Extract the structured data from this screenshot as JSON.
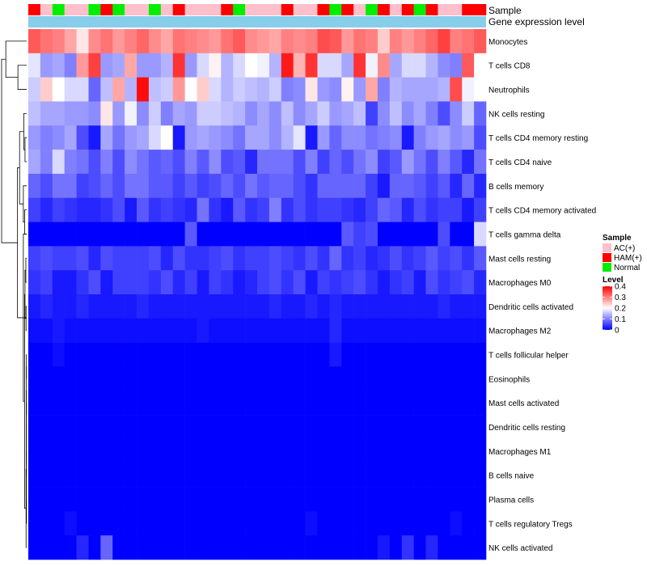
{
  "chart_data": {
    "type": "heatmap",
    "annotation_labels": {
      "sample": "Sample",
      "gene_expression": "Gene expression level"
    },
    "sample_groups": [
      "HAM(+)",
      "AC(+)",
      "Normal",
      "AC(+)",
      "AC(+)",
      "Normal",
      "HAM(+)",
      "Normal",
      "AC(+)",
      "AC(+)",
      "Normal",
      "AC(+)",
      "HAM(+)",
      "AC(+)",
      "AC(+)",
      "AC(+)",
      "HAM(+)",
      "Normal",
      "AC(+)",
      "AC(+)",
      "AC(+)",
      "HAM(+)",
      "AC(+)",
      "AC(+)",
      "HAM(+)",
      "Normal",
      "HAM(+)",
      "AC(+)",
      "Normal",
      "HAM(+)",
      "AC(+)",
      "HAM(+)",
      "Normal",
      "HAM(+)",
      "AC(+)",
      "AC(+)",
      "HAM(+)",
      "HAM(+)"
    ],
    "rows": [
      {
        "name": "Monocytes",
        "values": [
          0.33,
          0.31,
          0.3,
          0.27,
          0.22,
          0.29,
          0.31,
          0.28,
          0.3,
          0.32,
          0.29,
          0.27,
          0.31,
          0.3,
          0.29,
          0.28,
          0.31,
          0.33,
          0.29,
          0.28,
          0.27,
          0.3,
          0.29,
          0.3,
          0.34,
          0.33,
          0.28,
          0.31,
          0.3,
          0.24,
          0.3,
          0.28,
          0.3,
          0.32,
          0.35,
          0.3,
          0.31,
          0.33
        ]
      },
      {
        "name": "T cells CD8",
        "values": [
          0.18,
          0.12,
          0.13,
          0.1,
          0.28,
          0.35,
          0.12,
          0.13,
          0.27,
          0.12,
          0.12,
          0.14,
          0.36,
          0.12,
          0.17,
          0.21,
          0.14,
          0.17,
          0.2,
          0.19,
          0.14,
          0.38,
          0.26,
          0.36,
          0.17,
          0.17,
          0.13,
          0.36,
          0.19,
          0.29,
          0.13,
          0.17,
          0.17,
          0.14,
          0.11,
          0.1,
          0.33,
          0.2
        ]
      },
      {
        "name": "Neutrophils",
        "values": [
          0.16,
          0.24,
          0.2,
          0.17,
          0.17,
          0.08,
          0.15,
          0.27,
          0.14,
          0.39,
          0.15,
          0.16,
          0.28,
          0.2,
          0.24,
          0.17,
          0.14,
          0.16,
          0.15,
          0.14,
          0.16,
          0.1,
          0.11,
          0.22,
          0.12,
          0.11,
          0.21,
          0.12,
          0.27,
          0.1,
          0.14,
          0.13,
          0.13,
          0.13,
          0.14,
          0.34,
          0.19,
          0.2
        ]
      },
      {
        "name": "NK cells resting",
        "values": [
          0.15,
          0.13,
          0.13,
          0.12,
          0.12,
          0.11,
          0.22,
          0.12,
          0.19,
          0.11,
          0.16,
          0.1,
          0.13,
          0.12,
          0.16,
          0.16,
          0.15,
          0.14,
          0.11,
          0.13,
          0.11,
          0.15,
          0.11,
          0.13,
          0.16,
          0.12,
          0.13,
          0.15,
          0.05,
          0.11,
          0.15,
          0.11,
          0.13,
          0.1,
          0.06,
          0.11,
          0.16,
          0.08
        ]
      },
      {
        "name": "T cells CD4 memory resting",
        "values": [
          0.12,
          0.1,
          0.11,
          0.13,
          0.06,
          0.02,
          0.13,
          0.09,
          0.12,
          0.13,
          0.17,
          0.2,
          0.02,
          0.12,
          0.13,
          0.12,
          0.11,
          0.09,
          0.13,
          0.13,
          0.11,
          0.14,
          0.18,
          0.02,
          0.12,
          0.08,
          0.11,
          0.11,
          0.09,
          0.1,
          0.11,
          0.02,
          0.1,
          0.12,
          0.13,
          0.11,
          0.12,
          0.06
        ]
      },
      {
        "name": "T cells CD4 naive",
        "values": [
          0.13,
          0.1,
          0.17,
          0.1,
          0.09,
          0.06,
          0.1,
          0.06,
          0.11,
          0.09,
          0.07,
          0.08,
          0.06,
          0.1,
          0.07,
          0.11,
          0.06,
          0.07,
          0.03,
          0.09,
          0.09,
          0.09,
          0.06,
          0.1,
          0.05,
          0.08,
          0.06,
          0.09,
          0.11,
          0.05,
          0.07,
          0.12,
          0.09,
          0.06,
          0.1,
          0.07,
          0.03,
          0.09
        ]
      },
      {
        "name": "B cells memory",
        "values": [
          0.08,
          0.06,
          0.09,
          0.09,
          0.05,
          0.06,
          0.08,
          0.06,
          0.09,
          0.09,
          0.07,
          0.07,
          0.05,
          0.07,
          0.05,
          0.06,
          0.08,
          0.06,
          0.09,
          0.07,
          0.08,
          0.08,
          0.06,
          0.04,
          0.08,
          0.08,
          0.08,
          0.08,
          0.05,
          0.02,
          0.08,
          0.08,
          0.07,
          0.05,
          0.07,
          0.03,
          0.08,
          0.03
        ]
      },
      {
        "name": "T cells CD4 memory activated",
        "values": [
          0.05,
          0.03,
          0.05,
          0.04,
          0.03,
          0.03,
          0.04,
          0.06,
          0.02,
          0.07,
          0.04,
          0.05,
          0.04,
          0.03,
          0.09,
          0.04,
          0.02,
          0.07,
          0.04,
          0.05,
          0.1,
          0.04,
          0.06,
          0.04,
          0.05,
          0.05,
          0.04,
          0.03,
          0.05,
          0.08,
          0.07,
          0.03,
          0.06,
          0.04,
          0.05,
          0.05,
          0.02,
          0.05
        ]
      },
      {
        "name": "T cells gamma delta",
        "values": [
          0.0,
          0.0,
          0.0,
          0.0,
          0.0,
          0.0,
          0.0,
          0.0,
          0.0,
          0.0,
          0.0,
          0.0,
          0.0,
          0.07,
          0.0,
          0.0,
          0.0,
          0.0,
          0.0,
          0.0,
          0.0,
          0.0,
          0.0,
          0.0,
          0.0,
          0.0,
          0.07,
          0.05,
          0.06,
          0.0,
          0.0,
          0.0,
          0.0,
          0.0,
          0.06,
          0.0,
          0.0,
          0.17
        ]
      },
      {
        "name": "Mast cells resting",
        "values": [
          0.05,
          0.06,
          0.05,
          0.05,
          0.06,
          0.03,
          0.06,
          0.05,
          0.05,
          0.05,
          0.06,
          0.03,
          0.06,
          0.04,
          0.04,
          0.05,
          0.06,
          0.04,
          0.05,
          0.05,
          0.06,
          0.05,
          0.04,
          0.06,
          0.04,
          0.08,
          0.04,
          0.05,
          0.03,
          0.04,
          0.06,
          0.04,
          0.05,
          0.07,
          0.05,
          0.06,
          0.04,
          0.07
        ]
      },
      {
        "name": "Macrophages M0",
        "values": [
          0.04,
          0.05,
          0.02,
          0.02,
          0.04,
          0.06,
          0.02,
          0.05,
          0.05,
          0.05,
          0.04,
          0.06,
          0.03,
          0.05,
          0.02,
          0.05,
          0.04,
          0.02,
          0.03,
          0.05,
          0.06,
          0.04,
          0.06,
          0.02,
          0.05,
          0.04,
          0.05,
          0.06,
          0.04,
          0.02,
          0.04,
          0.05,
          0.02,
          0.06,
          0.04,
          0.05,
          0.06,
          0.03
        ]
      },
      {
        "name": "Dendritic cells activated",
        "values": [
          0.02,
          0.03,
          0.02,
          0.02,
          0.03,
          0.02,
          0.02,
          0.02,
          0.02,
          0.03,
          0.02,
          0.02,
          0.02,
          0.02,
          0.02,
          0.02,
          0.02,
          0.02,
          0.02,
          0.02,
          0.03,
          0.02,
          0.02,
          0.03,
          0.02,
          0.03,
          0.02,
          0.02,
          0.02,
          0.02,
          0.02,
          0.02,
          0.02,
          0.02,
          0.03,
          0.02,
          0.02,
          0.02
        ]
      },
      {
        "name": "Macrophages M2",
        "values": [
          0.01,
          0.01,
          0.02,
          0.01,
          0.01,
          0.01,
          0.01,
          0.01,
          0.01,
          0.01,
          0.01,
          0.01,
          0.01,
          0.01,
          0.02,
          0.01,
          0.01,
          0.01,
          0.01,
          0.01,
          0.01,
          0.01,
          0.01,
          0.01,
          0.01,
          0.03,
          0.01,
          0.01,
          0.01,
          0.01,
          0.01,
          0.01,
          0.01,
          0.01,
          0.01,
          0.01,
          0.01,
          0.01
        ]
      },
      {
        "name": "T cells follicular helper",
        "values": [
          0.0,
          0.0,
          0.01,
          0.0,
          0.0,
          0.0,
          0.0,
          0.0,
          0.0,
          0.0,
          0.0,
          0.0,
          0.0,
          0.0,
          0.0,
          0.0,
          0.0,
          0.0,
          0.0,
          0.0,
          0.0,
          0.0,
          0.0,
          0.0,
          0.0,
          0.02,
          0.0,
          0.0,
          0.0,
          0.0,
          0.0,
          0.0,
          0.0,
          0.0,
          0.0,
          0.0,
          0.0,
          0.0
        ]
      },
      {
        "name": "Eosinophils",
        "values": [
          0.0,
          0.0,
          0.0,
          0.0,
          0.0,
          0.0,
          0.0,
          0.0,
          0.0,
          0.0,
          0.0,
          0.0,
          0.0,
          0.0,
          0.0,
          0.0,
          0.0,
          0.0,
          0.0,
          0.0,
          0.0,
          0.0,
          0.0,
          0.0,
          0.0,
          0.0,
          0.0,
          0.0,
          0.0,
          0.0,
          0.0,
          0.0,
          0.0,
          0.0,
          0.0,
          0.0,
          0.0,
          0.0
        ]
      },
      {
        "name": "Mast cells activated",
        "values": [
          0.0,
          0.0,
          0.0,
          0.0,
          0.0,
          0.0,
          0.0,
          0.0,
          0.0,
          0.0,
          0.0,
          0.0,
          0.0,
          0.0,
          0.0,
          0.0,
          0.0,
          0.0,
          0.0,
          0.0,
          0.0,
          0.0,
          0.0,
          0.0,
          0.0,
          0.0,
          0.0,
          0.0,
          0.0,
          0.0,
          0.0,
          0.0,
          0.0,
          0.0,
          0.0,
          0.0,
          0.0,
          0.0
        ]
      },
      {
        "name": "Dendritic cells resting",
        "values": [
          0.0,
          0.0,
          0.0,
          0.0,
          0.0,
          0.0,
          0.0,
          0.0,
          0.0,
          0.0,
          0.0,
          0.0,
          0.0,
          0.0,
          0.0,
          0.0,
          0.0,
          0.0,
          0.0,
          0.0,
          0.0,
          0.0,
          0.0,
          0.0,
          0.0,
          0.0,
          0.0,
          0.0,
          0.0,
          0.0,
          0.0,
          0.0,
          0.0,
          0.0,
          0.0,
          0.0,
          0.0,
          0.0
        ]
      },
      {
        "name": "Macrophages M1",
        "values": [
          0.0,
          0.0,
          0.0,
          0.0,
          0.0,
          0.0,
          0.0,
          0.0,
          0.0,
          0.0,
          0.0,
          0.0,
          0.0,
          0.0,
          0.0,
          0.0,
          0.0,
          0.0,
          0.0,
          0.0,
          0.0,
          0.0,
          0.0,
          0.0,
          0.0,
          0.0,
          0.0,
          0.0,
          0.0,
          0.0,
          0.0,
          0.0,
          0.0,
          0.0,
          0.0,
          0.0,
          0.0,
          0.0
        ]
      },
      {
        "name": "B cells naive",
        "values": [
          0.0,
          0.0,
          0.0,
          0.0,
          0.0,
          0.0,
          0.0,
          0.0,
          0.0,
          0.0,
          0.0,
          0.0,
          0.0,
          0.0,
          0.0,
          0.0,
          0.0,
          0.0,
          0.0,
          0.0,
          0.0,
          0.0,
          0.0,
          0.0,
          0.0,
          0.0,
          0.0,
          0.0,
          0.0,
          0.0,
          0.0,
          0.0,
          0.0,
          0.0,
          0.0,
          0.0,
          0.0,
          0.0
        ]
      },
      {
        "name": "Plasma cells",
        "values": [
          0.0,
          0.0,
          0.0,
          0.0,
          0.0,
          0.0,
          0.0,
          0.0,
          0.0,
          0.0,
          0.0,
          0.0,
          0.0,
          0.0,
          0.0,
          0.0,
          0.0,
          0.0,
          0.0,
          0.0,
          0.0,
          0.0,
          0.0,
          0.0,
          0.0,
          0.0,
          0.0,
          0.0,
          0.0,
          0.0,
          0.0,
          0.0,
          0.0,
          0.0,
          0.0,
          0.0,
          0.0,
          0.0
        ]
      },
      {
        "name": "T cells regulatory  Tregs",
        "values": [
          0.0,
          0.0,
          0.0,
          0.01,
          0.0,
          0.0,
          0.0,
          0.0,
          0.0,
          0.0,
          0.0,
          0.0,
          0.0,
          0.0,
          0.0,
          0.0,
          0.0,
          0.0,
          0.0,
          0.0,
          0.0,
          0.0,
          0.0,
          0.01,
          0.0,
          0.0,
          0.0,
          0.0,
          0.0,
          0.0,
          0.0,
          0.0,
          0.0,
          0.0,
          0.0,
          0.01,
          0.0,
          0.0
        ]
      },
      {
        "name": "NK cells activated",
        "values": [
          0.0,
          0.0,
          0.0,
          0.0,
          0.03,
          0.0,
          0.08,
          0.0,
          0.0,
          0.0,
          0.0,
          0.0,
          0.0,
          0.0,
          0.0,
          0.0,
          0.0,
          0.0,
          0.0,
          0.0,
          0.0,
          0.0,
          0.0,
          0.0,
          0.0,
          0.0,
          0.0,
          0.0,
          0.0,
          0.02,
          0.0,
          0.04,
          0.0,
          0.03,
          0.0,
          0.0,
          0.0,
          0.0
        ]
      }
    ],
    "row_dendrogram": [
      {
        "l": 4,
        "r": 5,
        "h": 0.04
      },
      {
        "l": 7,
        "r": 8,
        "h": 0.05
      },
      {
        "l": 13,
        "r": 14,
        "h": 0.005
      },
      {
        "l": 15,
        "r": 16,
        "h": 0.005
      },
      {
        "l": 17,
        "r": 18,
        "h": 0.005
      },
      {
        "l": 19,
        "r": 20,
        "h": 0.005
      },
      {
        "l": 9,
        "r": 10,
        "h": 0.02
      },
      {
        "l": 11,
        "r": 12,
        "h": 0.015
      },
      {
        "l": 3,
        "r": 4.5,
        "h": 0.07
      },
      {
        "l": 6,
        "r": 7.5,
        "h": 0.08
      },
      {
        "l": 1,
        "r": 2,
        "h": 0.21
      },
      {
        "l": 0,
        "r": 1.5,
        "h": 0.5
      },
      {
        "l": 3.75,
        "r": 6.75,
        "h": 0.17
      },
      {
        "l": 9.5,
        "r": 11.5,
        "h": 0.04
      },
      {
        "l": 13.5,
        "r": 15.5,
        "h": 0.006
      },
      {
        "l": 14.5,
        "r": 17.5,
        "h": 0.007
      },
      {
        "l": 16,
        "r": 19.5,
        "h": 0.008
      },
      {
        "l": 17.75,
        "r": 21,
        "h": 0.015
      },
      {
        "l": 10.5,
        "r": 19.375,
        "h": 0.05
      },
      {
        "l": 8,
        "r": 14.9375,
        "h": 0.08
      },
      {
        "l": 5.25,
        "r": 11.47,
        "h": 0.22
      },
      {
        "l": 0.75,
        "r": 8.36,
        "h": 0.6
      }
    ],
    "legend": {
      "sample_title": "Sample",
      "sample_entries": [
        {
          "label": "AC(+)",
          "color": "#FFC0CB"
        },
        {
          "label": "HAM(+)",
          "color": "#FF0000"
        },
        {
          "label": "Normal",
          "color": "#00EE00"
        }
      ],
      "level_title": "Level",
      "level_ticks": [
        "0.4",
        "0.3",
        "0.2",
        "0.1",
        "0"
      ],
      "level_range": [
        0,
        0.4
      ]
    },
    "colors": {
      "low": "#0000FF",
      "mid": "#FFFFFF",
      "high": "#FF0000",
      "mid_value": 0.2,
      "gene_bar": "#87CEEB"
    }
  }
}
